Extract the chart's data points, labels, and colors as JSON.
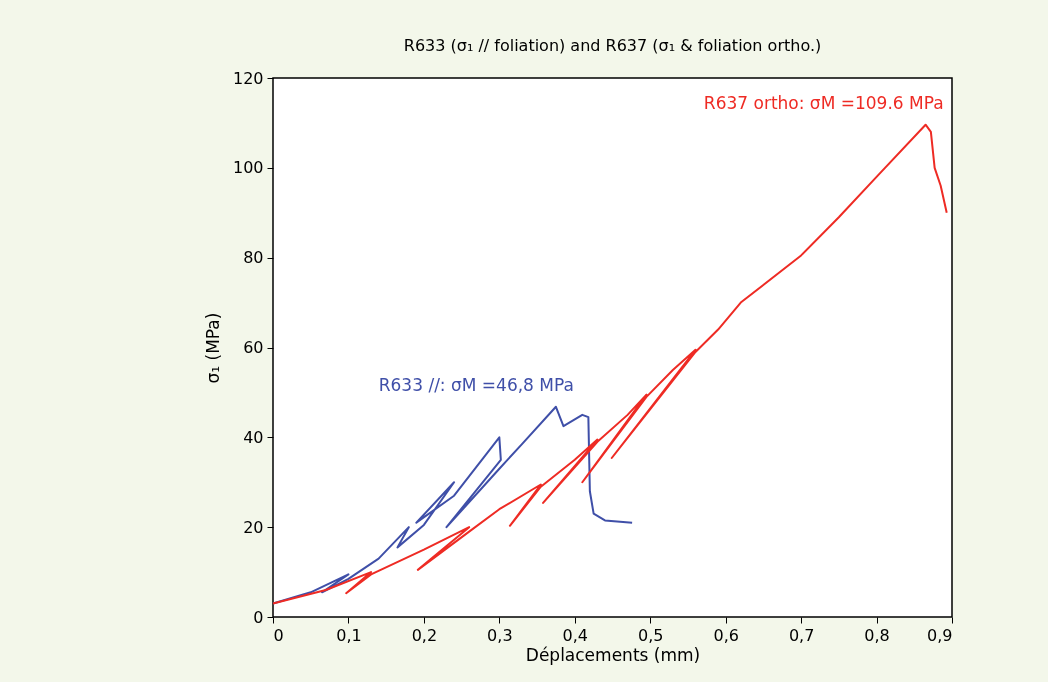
{
  "chart_data": {
    "type": "line",
    "title": "R633 (σ₁ // foliation) and R637  (σ₁ & foliation ortho.)",
    "xlabel": "Déplacements (mm)",
    "ylabel": "σ₁ (MPa)",
    "series": [
      {
        "name": "R633 //: σM =46,8 MPa",
        "color": "#3f4fa8",
        "x": [
          0,
          0.05,
          0.1,
          0.065,
          0.1,
          0.14,
          0.18,
          0.165,
          0.2,
          0.24,
          0.19,
          0.24,
          0.3,
          0.302,
          0.23,
          0.3,
          0.33,
          0.375,
          0.385,
          0.41,
          0.418,
          0.42,
          0.425,
          0.44,
          0.476
        ],
        "values": [
          3,
          5.5,
          9.5,
          5.5,
          8.5,
          13,
          20,
          15.5,
          20.5,
          30,
          21,
          27,
          40,
          35,
          20,
          33,
          38.5,
          46.8,
          42.5,
          45,
          44.5,
          28,
          23,
          21.5,
          21
        ]
      },
      {
        "name": "R637 ortho: σM =109.6 MPa",
        "color": "#ee2b24",
        "x": [
          0,
          0.07,
          0.13,
          0.097,
          0.13,
          0.2,
          0.26,
          0.192,
          0.26,
          0.3,
          0.355,
          0.314,
          0.355,
          0.4,
          0.43,
          0.358,
          0.43,
          0.47,
          0.495,
          0.41,
          0.495,
          0.53,
          0.56,
          0.449,
          0.56,
          0.59,
          0.62,
          0.7,
          0.75,
          0.8,
          0.865,
          0.872,
          0.877,
          0.885,
          0.893
        ],
        "values": [
          3,
          6,
          10,
          5.3,
          9.5,
          15,
          20,
          10.5,
          19,
          24,
          29.5,
          20.3,
          29,
          35,
          39.5,
          25.4,
          39,
          45,
          49.5,
          30,
          49,
          55,
          59.5,
          35.4,
          59,
          64,
          70,
          80.5,
          89,
          98,
          109.6,
          108,
          100,
          96,
          90
        ]
      }
    ],
    "xlim": [
      0,
      0.9
    ],
    "ylim": [
      0,
      120
    ],
    "xticks": [
      0,
      {
        "value": 0.1,
        "label": "0,1"
      },
      {
        "value": 0.2,
        "label": "0,2"
      },
      {
        "value": 0.3,
        "label": "0,3"
      },
      {
        "value": 0.4,
        "label": "0,4"
      },
      {
        "value": 0.5,
        "label": "0,5"
      },
      {
        "value": 0.6,
        "label": "0,6"
      },
      {
        "value": 0.7,
        "label": "0,7"
      },
      {
        "value": 0.8,
        "label": "0,8"
      },
      {
        "value": 0.9,
        "label": "0,9"
      }
    ],
    "yticks": [
      0,
      20,
      40,
      60,
      80,
      100,
      120
    ],
    "grid": false,
    "marker": "none",
    "line_style": "solid"
  }
}
